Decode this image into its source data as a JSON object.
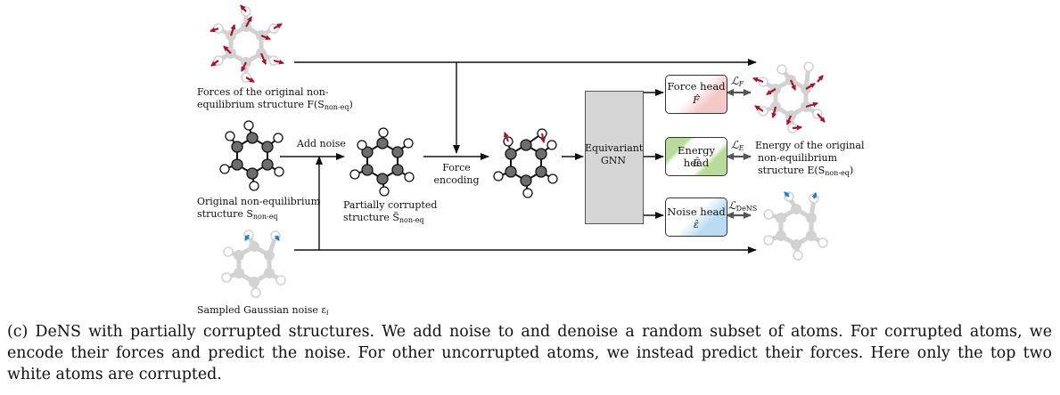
{
  "labels": {
    "forces_line1": "Forces of the original non-",
    "forces_line2": "equilibrium structure F(S",
    "forces_sub": "non-eq",
    "forces_end": ")",
    "add_noise": "Add noise",
    "original_line1": "Original non-equilibrium",
    "original_line2": "structure S",
    "original_sub": "non-eq",
    "partial_line1": "Partially corrupted",
    "partial_line2": "structure S̃",
    "partial_sub": "non-eq",
    "force_encoding_line1": "Force",
    "force_encoding_line2": "encoding",
    "gnn_line1": "Equivariant",
    "gnn_line2": "GNN",
    "force_head": "Force head",
    "force_head_sym": "F̂",
    "energy_head": "Energy head",
    "energy_head_sym": "Ê",
    "noise_head": "Noise head",
    "noise_head_sym": "ε̂",
    "loss_f": "ℒ",
    "loss_f_sub": "F",
    "loss_e": "ℒ",
    "loss_e_sub": "E",
    "loss_dens": "ℒ",
    "loss_dens_sub": "DeNS",
    "energy_line1": "Energy of the original",
    "energy_line2": "non-equilibrium",
    "energy_line3": "structure E(S",
    "energy_sub": "non-eq",
    "energy_end": ")",
    "noise_label": "Sampled Gaussian noise ε",
    "noise_label_sub": "i"
  },
  "caption": "(c) DeNS with partially corrupted structures. We add noise to and denoise a random subset of atoms. For corrupted atoms, we encode their forces and predict the noise. For other uncorrupted atoms, we instead predict their forces. Here only the top two white atoms are corrupted.",
  "colors": {
    "force_arrow": "#a4162b",
    "noise_arrow": "#1e7fd0",
    "atom_dark": "#6d6d6d",
    "atom_light": "#d2d2d2",
    "gnn_fill": "#d6d6d6",
    "force_tint": "#f6c9c9",
    "energy_tint": "#b9dc9a",
    "noise_tint": "#b9dcf3"
  }
}
